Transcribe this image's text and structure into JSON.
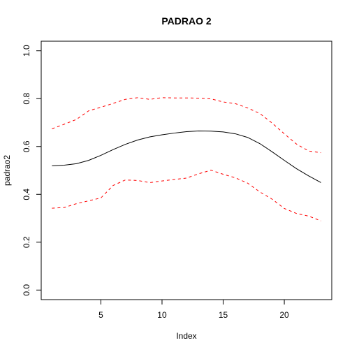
{
  "chart_data": {
    "type": "line",
    "title": "PADRAO 2",
    "xlabel": "Index",
    "ylabel": "padrao2",
    "xlim": [
      0.12,
      23.88
    ],
    "ylim": [
      -0.04,
      1.04
    ],
    "x_ticks": [
      5,
      10,
      15,
      20
    ],
    "y_ticks": [
      0.0,
      0.2,
      0.4,
      0.6,
      0.8,
      1.0
    ],
    "x_tick_labels": [
      "5",
      "10",
      "15",
      "20"
    ],
    "y_tick_labels": [
      "0.0",
      "0.2",
      "0.4",
      "0.6",
      "0.8",
      "1.0"
    ],
    "grid": false,
    "x": [
      1,
      2,
      3,
      4,
      5,
      6,
      7,
      8,
      9,
      10,
      11,
      12,
      13,
      14,
      15,
      16,
      17,
      18,
      19,
      20,
      21,
      22,
      23
    ],
    "series": [
      {
        "role": "mean",
        "color": "#000000",
        "dash": "solid",
        "values": [
          0.519,
          0.522,
          0.528,
          0.542,
          0.563,
          0.587,
          0.609,
          0.627,
          0.64,
          0.649,
          0.656,
          0.662,
          0.665,
          0.664,
          0.661,
          0.653,
          0.638,
          0.612,
          0.578,
          0.542,
          0.507,
          0.477,
          0.449
        ]
      },
      {
        "role": "upper",
        "color": "#ff0000",
        "dash": "dashed",
        "values": [
          0.674,
          0.693,
          0.713,
          0.749,
          0.764,
          0.78,
          0.797,
          0.804,
          0.797,
          0.804,
          0.803,
          0.803,
          0.802,
          0.799,
          0.786,
          0.779,
          0.761,
          0.738,
          0.698,
          0.653,
          0.61,
          0.581,
          0.574
        ]
      },
      {
        "role": "lower",
        "color": "#ff0000",
        "dash": "dashed",
        "values": [
          0.342,
          0.345,
          0.361,
          0.373,
          0.385,
          0.437,
          0.46,
          0.458,
          0.449,
          0.456,
          0.462,
          0.468,
          0.486,
          0.501,
          0.484,
          0.469,
          0.447,
          0.41,
          0.38,
          0.341,
          0.32,
          0.309,
          0.289
        ]
      }
    ]
  }
}
